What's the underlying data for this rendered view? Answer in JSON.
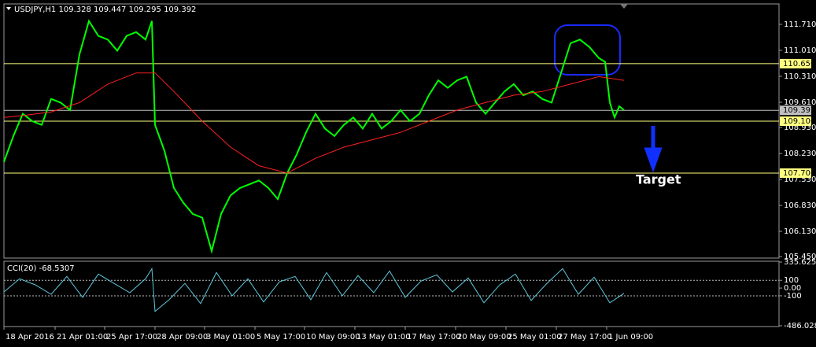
{
  "chart_data": [
    {
      "type": "line",
      "title": "USDJPY,H1  109.328 109.447 109.295 109.392",
      "annotation": "Target",
      "xlim": [
        0,
        985
      ],
      "ylim": [
        105.41,
        112.26
      ],
      "yticks": [
        {
          "value": 111.71,
          "label": "111.710"
        },
        {
          "value": 111.01,
          "label": "111.010"
        },
        {
          "value": 110.31,
          "label": "110.310"
        },
        {
          "value": 109.61,
          "label": "109.610"
        },
        {
          "value": 108.93,
          "label": "108.930"
        },
        {
          "value": 108.23,
          "label": "108.230"
        },
        {
          "value": 107.53,
          "label": "107.530"
        },
        {
          "value": 106.83,
          "label": "106.830"
        },
        {
          "value": 106.13,
          "label": "106.130"
        },
        {
          "value": 105.45,
          "label": "105.450"
        }
      ],
      "levels": [
        {
          "value": 110.65,
          "label": "110.650",
          "color": "#ffff80"
        },
        {
          "value": 109.392,
          "label": "109.392",
          "color": "#c0c0c0"
        },
        {
          "value": 109.1,
          "label": "109.100",
          "color": "#ffff80"
        },
        {
          "value": 107.7,
          "label": "107.700",
          "color": "#ffff80"
        }
      ],
      "series": [
        {
          "name": "USDJPY",
          "color": "#00ff00",
          "x": [
            0,
            12,
            24,
            36,
            48,
            60,
            72,
            84,
            96,
            108,
            120,
            132,
            144,
            156,
            168,
            180,
            188,
            192,
            204,
            216,
            228,
            240,
            252,
            264,
            276,
            288,
            300,
            312,
            324,
            336,
            348,
            360,
            372,
            384,
            396,
            408,
            420,
            432,
            444,
            456,
            468,
            480,
            492,
            504,
            516,
            528,
            540,
            552,
            564,
            576,
            588,
            600,
            612,
            624,
            636,
            648,
            660,
            672,
            684,
            696,
            708,
            720,
            732,
            744,
            756,
            764,
            770,
            776,
            782,
            788
          ],
          "values": [
            108.0,
            108.7,
            109.3,
            109.1,
            109.0,
            109.7,
            109.6,
            109.4,
            110.9,
            111.8,
            111.4,
            111.3,
            111.0,
            111.4,
            111.5,
            111.3,
            111.8,
            109.0,
            108.3,
            107.3,
            106.9,
            106.6,
            106.5,
            105.6,
            106.6,
            107.1,
            107.3,
            107.4,
            107.5,
            107.3,
            107.0,
            107.7,
            108.2,
            108.8,
            109.3,
            108.9,
            108.7,
            109.0,
            109.2,
            108.9,
            109.3,
            108.9,
            109.1,
            109.4,
            109.1,
            109.3,
            109.8,
            110.2,
            110.0,
            110.2,
            110.3,
            109.6,
            109.3,
            109.6,
            109.9,
            110.1,
            109.8,
            109.9,
            109.7,
            109.6,
            110.4,
            111.2,
            111.3,
            111.1,
            110.8,
            110.7,
            109.6,
            109.2,
            109.5,
            109.4
          ]
        },
        {
          "name": "MA",
          "color": "#ff2020",
          "x": [
            0,
            24,
            60,
            96,
            132,
            168,
            192,
            216,
            252,
            288,
            324,
            360,
            396,
            432,
            468,
            504,
            540,
            576,
            612,
            648,
            684,
            720,
            756,
            788
          ],
          "values": [
            109.2,
            109.25,
            109.35,
            109.6,
            110.1,
            110.4,
            110.4,
            109.9,
            109.1,
            108.4,
            107.9,
            107.7,
            108.1,
            108.4,
            108.6,
            108.8,
            109.1,
            109.4,
            109.6,
            109.8,
            109.9,
            110.1,
            110.3,
            110.2
          ]
        }
      ]
    },
    {
      "type": "line",
      "title": "CCI(20) -68.5307",
      "xlim": [
        0,
        985
      ],
      "ylim": [
        -486.0281,
        335.6251
      ],
      "yticks": [
        335.6251,
        100,
        {
          "value": 0,
          "label": "0.00"
        },
        -100,
        -486.0281
      ],
      "levels": [
        {
          "value": 100
        },
        {
          "value": -100
        }
      ],
      "xticks": [
        {
          "value": 0,
          "label": "18 Apr 2016"
        },
        {
          "value": 65,
          "label": "21 Apr 01:00"
        },
        {
          "value": 128,
          "label": "25 Apr 17:00"
        },
        {
          "value": 192,
          "label": "28 Apr 09:00"
        },
        {
          "value": 255,
          "label": "3 May 01:00"
        },
        {
          "value": 319,
          "label": "5 May 17:00"
        },
        {
          "value": 382,
          "label": "10 May 09:00"
        },
        {
          "value": 446,
          "label": "13 May 01:00"
        },
        {
          "value": 510,
          "label": "17 May 17:00"
        },
        {
          "value": 574,
          "label": "20 May 09:00"
        },
        {
          "value": 638,
          "label": "25 May 01:00"
        },
        {
          "value": 702,
          "label": "27 May 17:00"
        },
        {
          "value": 766,
          "label": "1 Jun 09:00"
        }
      ],
      "series": [
        {
          "name": "CCI",
          "color": "#5fc8dc",
          "x": [
            0,
            20,
            40,
            60,
            80,
            100,
            120,
            140,
            160,
            180,
            188,
            192,
            210,
            230,
            250,
            270,
            290,
            310,
            330,
            350,
            370,
            390,
            410,
            430,
            450,
            470,
            490,
            510,
            530,
            550,
            570,
            590,
            610,
            630,
            650,
            670,
            690,
            710,
            730,
            750,
            770,
            788
          ],
          "values": [
            -50,
            120,
            40,
            -80,
            150,
            -120,
            180,
            60,
            -60,
            120,
            250,
            -300,
            -150,
            60,
            -200,
            200,
            -100,
            120,
            -180,
            80,
            150,
            -150,
            200,
            -100,
            160,
            -60,
            220,
            -120,
            90,
            170,
            -50,
            130,
            -190,
            40,
            180,
            -160,
            60,
            250,
            -80,
            140,
            -190,
            -68.5307
          ]
        }
      ]
    }
  ]
}
